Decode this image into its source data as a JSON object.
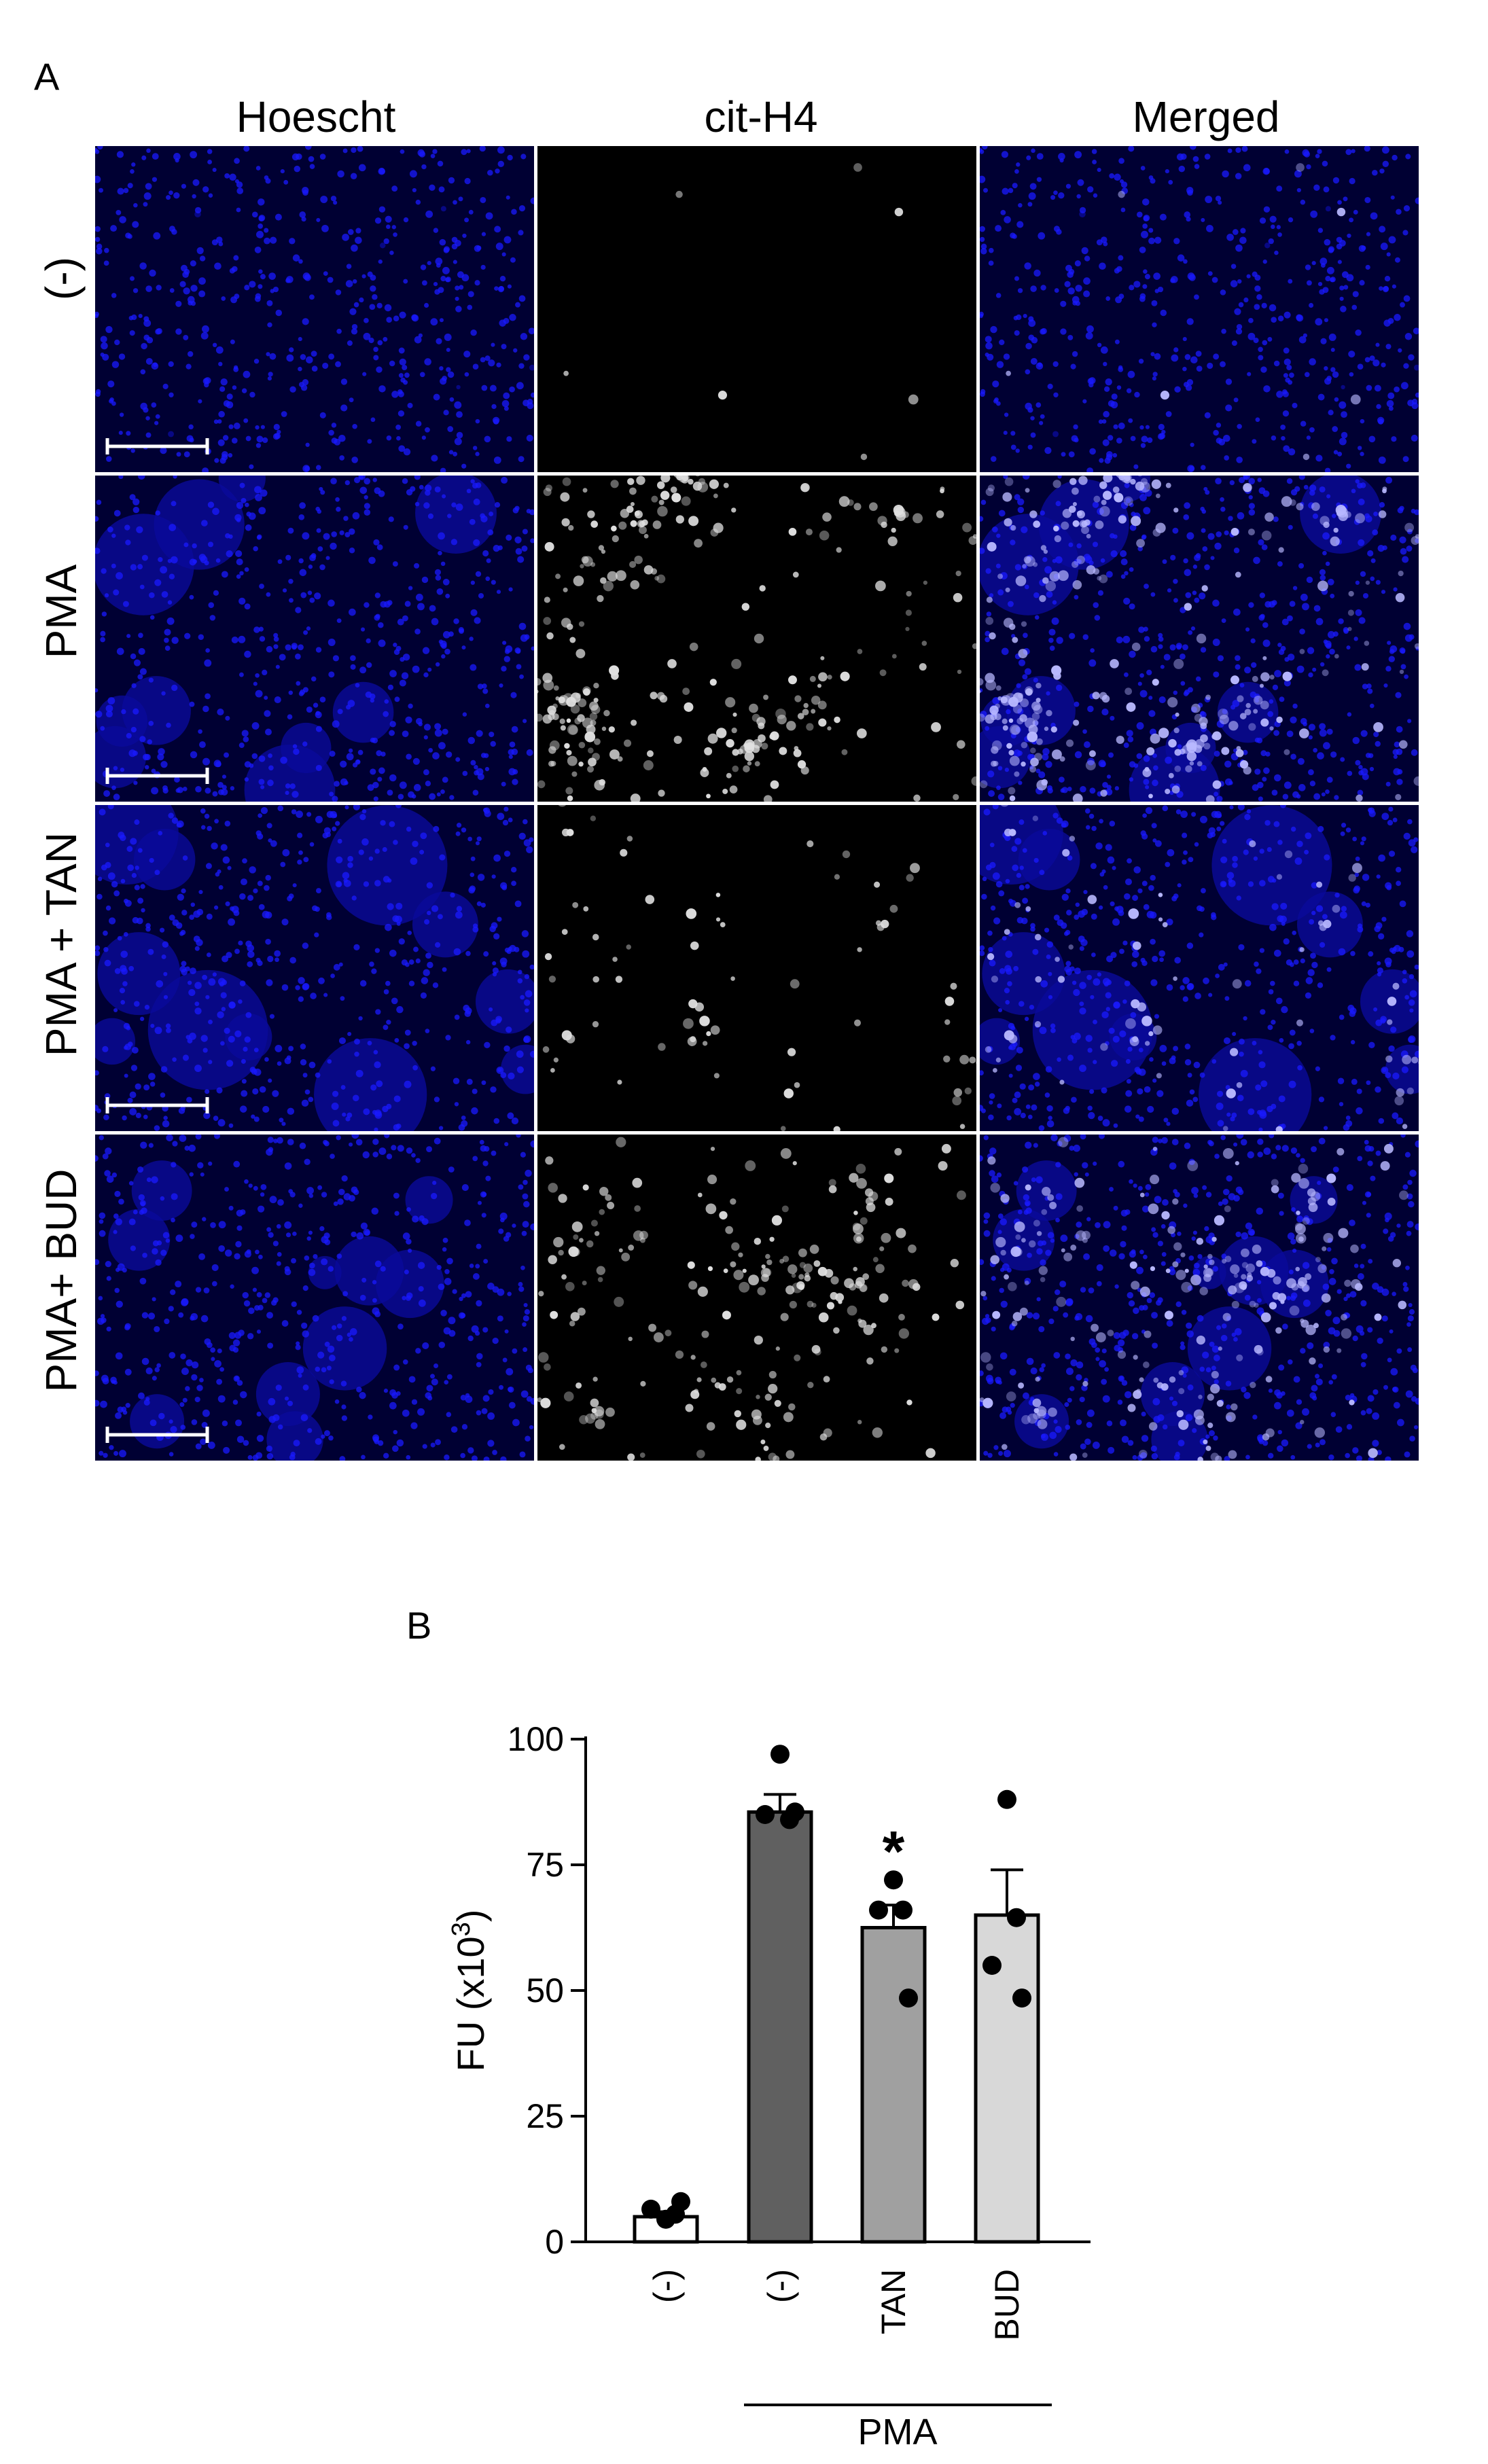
{
  "panels": {
    "a_label": "A",
    "b_label": "B"
  },
  "micrograph": {
    "columns": [
      "Hoescht",
      "cit-H4",
      "Merged"
    ],
    "rows": [
      "(-)",
      "PMA",
      "PMA + TAN",
      "PMA+ BUD"
    ],
    "colors": {
      "nuclei": "#1a1aff",
      "nuclei_dim": "#0a0a9a",
      "background_blue": "#000033",
      "background_black": "#000000",
      "cith4": "#e0e0e0",
      "merged_highlight": "#b8b8ff",
      "scalebar": "#ffffff"
    },
    "cith4_intensity": [
      0.02,
      0.75,
      0.18,
      0.55
    ],
    "nuclear_clustering": [
      0.05,
      0.7,
      0.85,
      0.6
    ]
  },
  "chart_data": {
    "type": "bar",
    "categories": [
      "(-)",
      "(-)",
      "TAN",
      "BUD"
    ],
    "group_label": "PMA",
    "group_members": [
      "(-)",
      "TAN",
      "BUD"
    ],
    "ylabel": "FU (x10",
    "ylabel_sup": "3",
    "ylabel_close": ")",
    "ylim": [
      0,
      100
    ],
    "yticks": [
      "0",
      "25",
      "50",
      "75",
      "100"
    ],
    "bars": [
      {
        "value": 5,
        "sem": 1,
        "color": "#ffffff",
        "points": [
          4.5,
          5.5,
          6.5,
          8.0
        ]
      },
      {
        "value": 85.5,
        "sem": 3.5,
        "color": "#606060",
        "points": [
          97,
          84,
          85,
          85.5
        ]
      },
      {
        "value": 62.5,
        "sem": 4.5,
        "color": "#a0a0a0",
        "points": [
          72,
          66,
          66,
          48.5
        ]
      },
      {
        "value": 65,
        "sem": 9,
        "color": "#d8d8d8",
        "points": [
          88,
          64.5,
          55,
          48.5
        ]
      }
    ],
    "significance": [
      {
        "bar": 2,
        "mark": "*"
      }
    ]
  }
}
